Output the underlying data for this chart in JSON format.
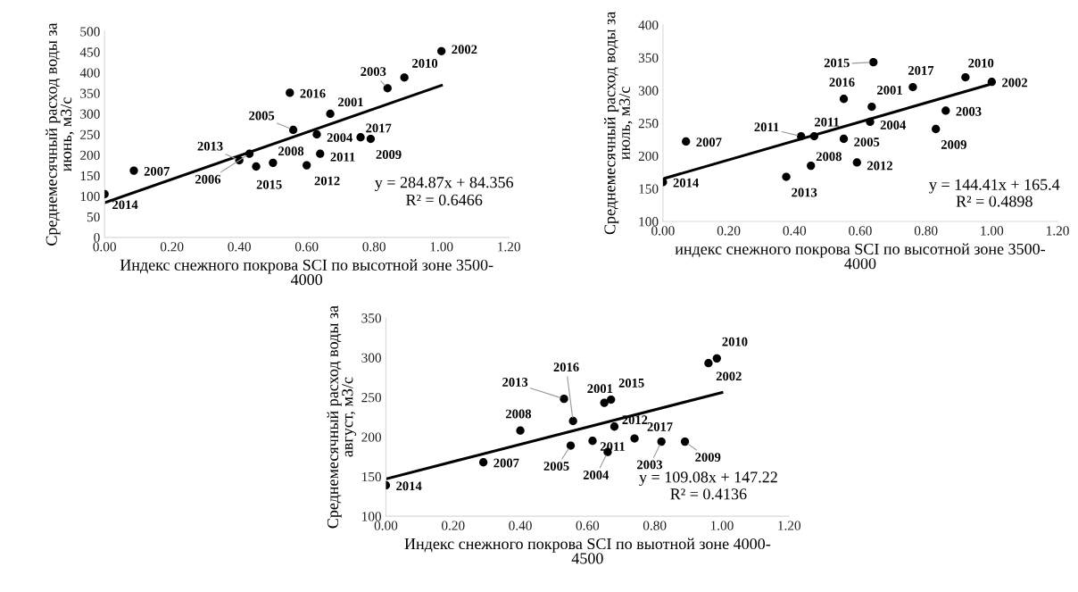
{
  "chart_data": [
    {
      "type": "scatter",
      "ylabel": "Среднемесячный расход воды за\nиюнь, м3/с",
      "xlabel": "Индекс снежного покрова SCI по высотной зоне 3500-\n4000",
      "xlim": [
        0,
        1.2
      ],
      "xticks": [
        {
          "value": 0,
          "label": "0.00"
        },
        {
          "value": 0.2,
          "label": "0.20"
        },
        {
          "value": 0.4,
          "label": "0.40"
        },
        {
          "value": 0.6,
          "label": "0.60"
        },
        {
          "value": 0.8,
          "label": "0.80"
        },
        {
          "value": 1.0,
          "label": "1.00"
        },
        {
          "value": 1.2,
          "label": "1.20"
        }
      ],
      "ylim": [
        0,
        500
      ],
      "yticks": [
        0,
        50,
        100,
        150,
        200,
        250,
        300,
        350,
        400,
        450,
        500
      ],
      "grid": false,
      "legend": false,
      "series": [
        {
          "marker": "circle",
          "color": "#000000",
          "x": [
            0.0,
            0.087,
            0.4,
            0.43,
            0.45,
            0.5,
            0.55,
            0.56,
            0.67,
            0.63,
            0.64,
            0.6,
            0.76,
            0.79,
            0.84,
            0.89,
            1.0
          ],
          "values": [
            105,
            162,
            187,
            203,
            172,
            181,
            351,
            261,
            300,
            250,
            203,
            175,
            243,
            239,
            362,
            388,
            452
          ]
        },
        {
          "type": "line",
          "marker": "none",
          "color": "#000000",
          "x": [
            0,
            1
          ],
          "values": [
            84,
            369
          ]
        }
      ],
      "annotations": [
        {
          "text": "2014",
          "x": 0.0,
          "y": 105
        },
        {
          "text": "2007",
          "x": 0.087,
          "y": 162
        },
        {
          "text": "2013",
          "x": 0.4,
          "y": 187
        },
        {
          "text": "2006",
          "x": 0.43,
          "y": 203
        },
        {
          "text": "2015",
          "x": 0.45,
          "y": 172
        },
        {
          "text": "2008",
          "x": 0.5,
          "y": 181
        },
        {
          "text": "2016",
          "x": 0.55,
          "y": 351
        },
        {
          "text": "2005",
          "x": 0.56,
          "y": 261
        },
        {
          "text": "2001",
          "x": 0.67,
          "y": 300
        },
        {
          "text": "2004",
          "x": 0.63,
          "y": 250
        },
        {
          "text": "2011",
          "x": 0.64,
          "y": 203
        },
        {
          "text": "2012",
          "x": 0.6,
          "y": 175
        },
        {
          "text": "2017",
          "x": 0.76,
          "y": 243
        },
        {
          "text": "2009",
          "x": 0.79,
          "y": 239
        },
        {
          "text": "2003",
          "x": 0.84,
          "y": 362
        },
        {
          "text": "2010",
          "x": 0.89,
          "y": 388
        },
        {
          "text": "2002",
          "x": 1.0,
          "y": 452
        },
        "y = 284.87x + 84.356",
        "R² = 0.6466"
      ]
    },
    {
      "type": "scatter",
      "ylabel": "Среднемесячный расход воды за\nиюль, м3/с",
      "xlabel": "индекс снежного покрова SCI по высотной зоне 3500-\n4000",
      "xlim": [
        0,
        1.2
      ],
      "xticks": [
        {
          "value": 0,
          "label": "0.00"
        },
        {
          "value": 0.2,
          "label": "0.20"
        },
        {
          "value": 0.4,
          "label": "0.40"
        },
        {
          "value": 0.6,
          "label": "0.60"
        },
        {
          "value": 0.8,
          "label": "0.80"
        },
        {
          "value": 1.0,
          "label": "1.00"
        },
        {
          "value": 1.2,
          "label": "1.20"
        }
      ],
      "ylim": [
        100,
        400
      ],
      "yticks": [
        100,
        150,
        200,
        250,
        300,
        350,
        400
      ],
      "grid": false,
      "legend": false,
      "series": [
        {
          "marker": "circle",
          "color": "#000000",
          "x": [
            0.0,
            0.07,
            0.375,
            0.42,
            0.46,
            0.45,
            0.55,
            0.55,
            0.59,
            0.64,
            0.635,
            0.63,
            0.76,
            0.92,
            1.0,
            0.86,
            0.83
          ],
          "values": [
            160,
            222,
            168,
            230,
            230,
            185,
            287,
            226,
            190,
            343,
            275,
            252,
            305,
            320,
            313,
            269,
            241
          ]
        },
        {
          "type": "line",
          "marker": "none",
          "color": "#000000",
          "x": [
            0,
            1
          ],
          "values": [
            165,
            310
          ]
        }
      ],
      "annotations": [
        {
          "text": "2014",
          "x": 0.0,
          "y": 160
        },
        {
          "text": "2007",
          "x": 0.07,
          "y": 222
        },
        {
          "text": "2013",
          "x": 0.375,
          "y": 168
        },
        {
          "text": "2011",
          "x": 0.42,
          "y": 230
        },
        {
          "text": "2011",
          "x": 0.46,
          "y": 230
        },
        {
          "text": "2008",
          "x": 0.45,
          "y": 185
        },
        {
          "text": "2016",
          "x": 0.55,
          "y": 287
        },
        {
          "text": "2005",
          "x": 0.55,
          "y": 226
        },
        {
          "text": "2012",
          "x": 0.59,
          "y": 190
        },
        {
          "text": "2015",
          "x": 0.64,
          "y": 343
        },
        {
          "text": "2001",
          "x": 0.635,
          "y": 275
        },
        {
          "text": "2004",
          "x": 0.63,
          "y": 252
        },
        {
          "text": "2017",
          "x": 0.76,
          "y": 305
        },
        {
          "text": "2010",
          "x": 0.92,
          "y": 320
        },
        {
          "text": "2002",
          "x": 1.0,
          "y": 313
        },
        {
          "text": "2003",
          "x": 0.86,
          "y": 269
        },
        {
          "text": "2009",
          "x": 0.83,
          "y": 241
        },
        "y = 144.41x + 165.4",
        "R² = 0.4898"
      ]
    },
    {
      "type": "scatter",
      "ylabel": "Среднемесячный расход воды за\nавгуст, м3/с",
      "xlabel": "Индекс снежного покрова SCI по выотной зоне 4000-\n4500",
      "xlim": [
        0,
        1.2
      ],
      "xticks": [
        {
          "value": 0,
          "label": "0.00"
        },
        {
          "value": 0.2,
          "label": "0.20"
        },
        {
          "value": 0.4,
          "label": "0.40"
        },
        {
          "value": 0.6,
          "label": "0.60"
        },
        {
          "value": 0.8,
          "label": "0.80"
        },
        {
          "value": 1.0,
          "label": "1.00"
        },
        {
          "value": 1.2,
          "label": "1.20"
        }
      ],
      "ylim": [
        100,
        350
      ],
      "yticks": [
        100,
        150,
        200,
        250,
        300,
        350
      ],
      "grid": false,
      "legend": false,
      "series": [
        {
          "marker": "circle",
          "color": "#000000",
          "x": [
            0.0,
            0.29,
            0.4,
            0.53,
            0.557,
            0.65,
            0.67,
            0.68,
            0.615,
            0.74,
            0.55,
            0.66,
            0.82,
            0.89,
            0.985,
            0.96
          ],
          "values": [
            139,
            168,
            208,
            248,
            220,
            243,
            247,
            213,
            195,
            198,
            189,
            181,
            194,
            194,
            299,
            293
          ]
        },
        {
          "type": "line",
          "marker": "none",
          "color": "#000000",
          "x": [
            0,
            1
          ],
          "values": [
            147,
            256
          ]
        }
      ],
      "annotations": [
        {
          "text": "2014",
          "x": 0.0,
          "y": 139
        },
        {
          "text": "2007",
          "x": 0.29,
          "y": 168
        },
        {
          "text": "2008",
          "x": 0.4,
          "y": 208
        },
        {
          "text": "2013",
          "x": 0.53,
          "y": 248
        },
        {
          "text": "2016",
          "x": 0.557,
          "y": 220
        },
        {
          "text": "2001",
          "x": 0.65,
          "y": 243
        },
        {
          "text": "2015",
          "x": 0.67,
          "y": 247
        },
        {
          "text": "2012",
          "x": 0.68,
          "y": 213
        },
        {
          "text": "2011",
          "x": 0.615,
          "y": 195
        },
        {
          "text": "2017",
          "x": 0.74,
          "y": 198
        },
        {
          "text": "2005",
          "x": 0.55,
          "y": 189
        },
        {
          "text": "2004",
          "x": 0.66,
          "y": 181
        },
        {
          "text": "2003",
          "x": 0.82,
          "y": 194
        },
        {
          "text": "2009",
          "x": 0.89,
          "y": 194
        },
        {
          "text": "2010",
          "x": 0.985,
          "y": 299
        },
        {
          "text": "2002",
          "x": 0.96,
          "y": 293
        },
        "y = 109.08x + 147.22",
        "R² = 0.4136"
      ]
    }
  ]
}
